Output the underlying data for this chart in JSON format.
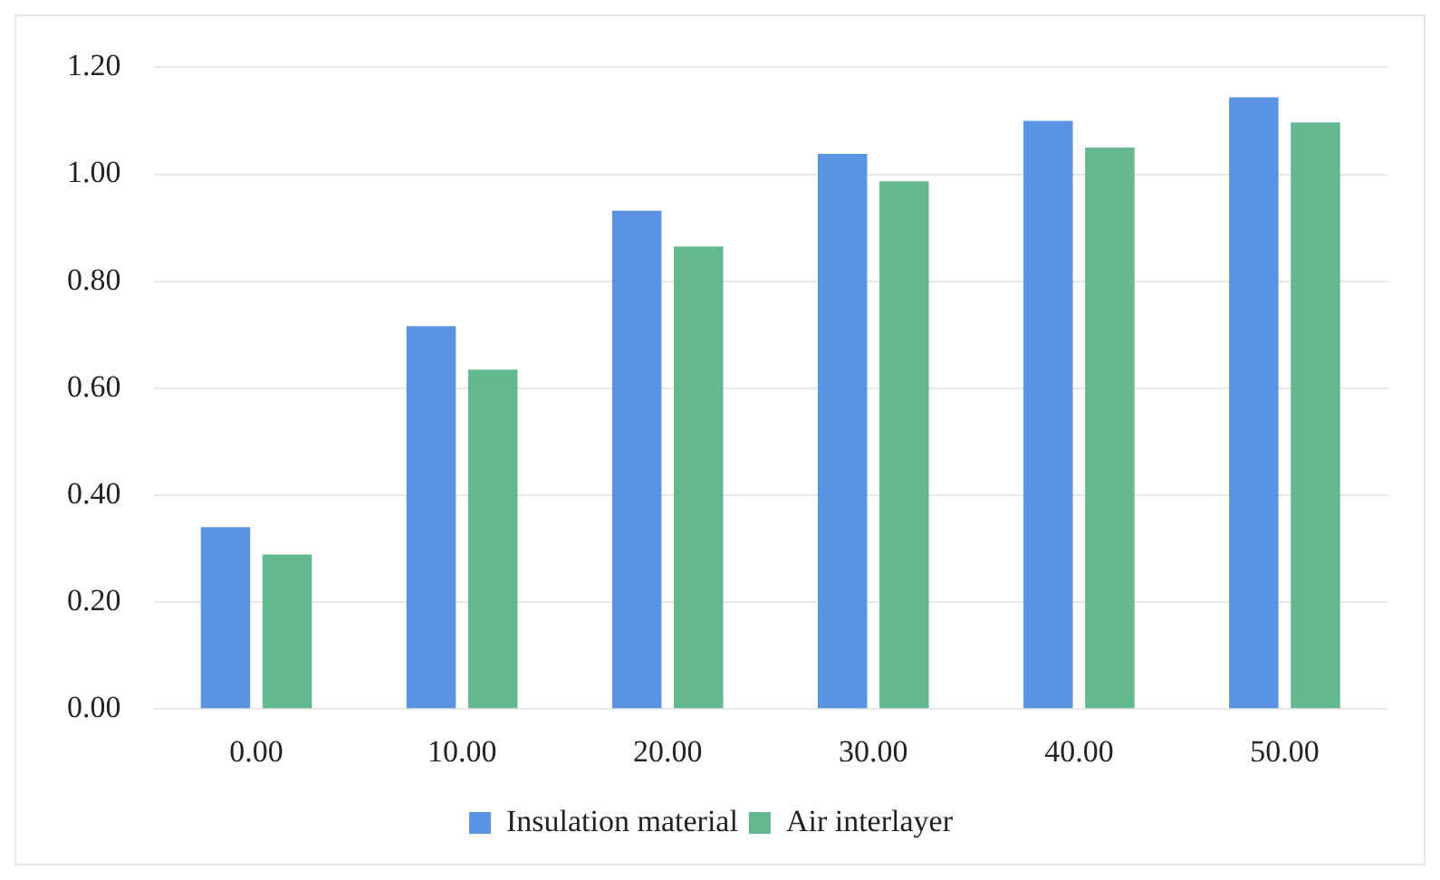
{
  "chart_data": {
    "type": "bar",
    "categories": [
      "0.00",
      "10.00",
      "20.00",
      "30.00",
      "40.00",
      "50.00"
    ],
    "series": [
      {
        "name": "Insulation material",
        "color": "#5b93e3",
        "values": [
          0.34,
          0.716,
          0.932,
          1.038,
          1.1,
          1.144
        ]
      },
      {
        "name": "Air interlayer",
        "color": "#64b890",
        "values": [
          0.289,
          0.635,
          0.865,
          0.987,
          1.05,
          1.097
        ]
      }
    ],
    "ylim": [
      0,
      1.2
    ],
    "yticks": [
      {
        "value": 0,
        "label": "0.00"
      },
      {
        "value": 0.2,
        "label": "0.20"
      },
      {
        "value": 0.4,
        "label": "0.40"
      },
      {
        "value": 0.6,
        "label": "0.60"
      },
      {
        "value": 0.8,
        "label": "0.80"
      },
      {
        "value": 1,
        "label": "1.00"
      },
      {
        "value": 1.2,
        "label": "1.20"
      }
    ],
    "grid": "y",
    "legend": "bottom"
  }
}
